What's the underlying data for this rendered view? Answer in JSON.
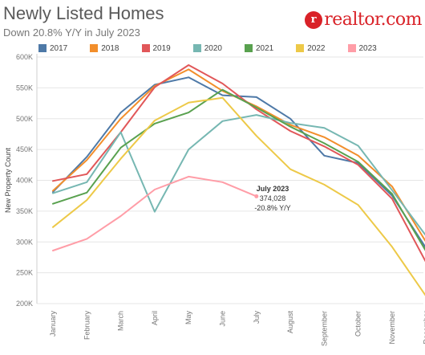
{
  "header": {
    "title": "Newly Listed Homes",
    "subtitle": "Down 20.8% Y/Y in July 2023",
    "logo_mark": "r",
    "logo_text": "realtor.com"
  },
  "colors": {
    "2017": "#4e79a7",
    "2018": "#f28e2b",
    "2019": "#e15759",
    "2020": "#76b7b2",
    "2021": "#59a14f",
    "2022": "#edc948",
    "2023": "#ff9da7"
  },
  "chart_data": {
    "type": "line",
    "title": "Newly Listed Homes",
    "subtitle": "Down 20.8% Y/Y in July 2023",
    "ylabel": "New Property Count",
    "xlabel": "",
    "ylim": [
      200000,
      600000
    ],
    "yticks": [
      200000,
      250000,
      300000,
      350000,
      400000,
      450000,
      500000,
      550000,
      600000
    ],
    "ytick_labels": [
      "200K",
      "250K",
      "300K",
      "350K",
      "400K",
      "450K",
      "500K",
      "550K",
      "600K"
    ],
    "grid": true,
    "legend_position": "top",
    "categories": [
      "January",
      "February",
      "March",
      "April",
      "May",
      "June",
      "July",
      "August",
      "September",
      "October",
      "November",
      "December"
    ],
    "series": [
      {
        "name": "2017",
        "values": [
          381000,
          438000,
          510000,
          555000,
          567000,
          538000,
          535000,
          500000,
          440000,
          428000,
          375000,
          290000
        ]
      },
      {
        "name": "2018",
        "values": [
          383000,
          433000,
          500000,
          553000,
          580000,
          545000,
          520000,
          490000,
          470000,
          440000,
          390000,
          300000
        ]
      },
      {
        "name": "2019",
        "values": [
          399000,
          410000,
          478000,
          551000,
          587000,
          557000,
          515000,
          480000,
          455000,
          425000,
          370000,
          267000
        ]
      },
      {
        "name": "2020",
        "values": [
          379000,
          397000,
          478000,
          349000,
          450000,
          496000,
          506000,
          493000,
          485000,
          456000,
          384000,
          310000
        ]
      },
      {
        "name": "2021",
        "values": [
          362000,
          380000,
          453000,
          492000,
          510000,
          547000,
          518000,
          487000,
          460000,
          430000,
          378000,
          285000
        ]
      },
      {
        "name": "2022",
        "values": [
          324000,
          368000,
          435000,
          497000,
          526000,
          534000,
          472000,
          418000,
          393000,
          360000,
          292000,
          212000
        ]
      },
      {
        "name": "2023",
        "values": [
          286000,
          305000,
          342000,
          385000,
          406000,
          397000,
          374028,
          null,
          null,
          null,
          null,
          null
        ]
      }
    ],
    "annotation": {
      "series": "2023",
      "category": "July",
      "line1": "July 2023",
      "line2": "374,028",
      "line3": "-20.8% Y/Y"
    }
  }
}
